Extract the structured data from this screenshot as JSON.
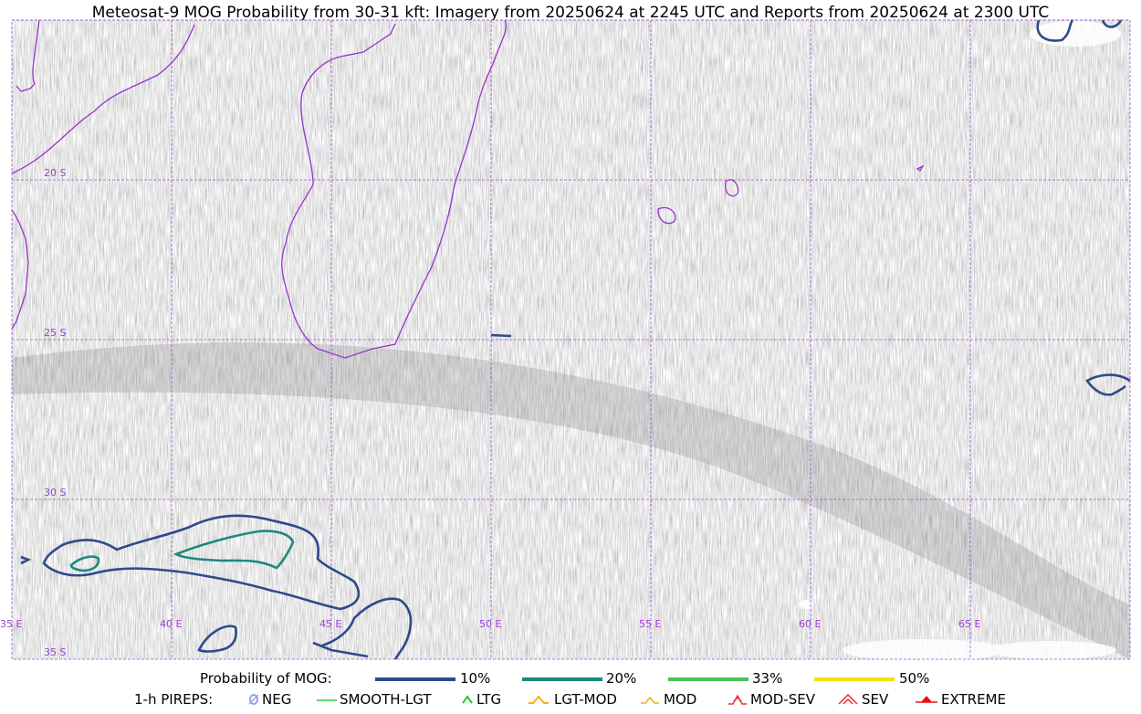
{
  "title": "Meteosat-9 MOG Probability from 30-31 kft: Imagery from 20250624 at 2245 UTC and Reports from 20250624 at 2300 UTC",
  "map": {
    "latitude_labels": [
      "20 S",
      "25 S",
      "30 S",
      "35 S"
    ],
    "longitude_labels": [
      "35 E",
      "40 E",
      "45 E",
      "50 E",
      "55 E",
      "60 E",
      "65 E"
    ],
    "colors": {
      "grid": "#a04fd8",
      "coastline": "#9932cc",
      "contour_10": "#2f4a8a",
      "contour_20": "#1a8a7e",
      "contour_33": "#46c45a",
      "contour_50": "#f5df10"
    }
  },
  "legend": {
    "probability_label": "Probability of MOG:",
    "levels": [
      {
        "label": "10%",
        "color": "#2f4a8a"
      },
      {
        "label": "20%",
        "color": "#1a8a7e"
      },
      {
        "label": "33%",
        "color": "#46c45a"
      },
      {
        "label": "50%",
        "color": "#f5df10"
      }
    ],
    "pireps_label": "1-h PIREPS:",
    "pireps": [
      {
        "label": "NEG",
        "icon": "neg-pirep-icon",
        "color": "#9aa0f0"
      },
      {
        "label": "SMOOTH-LGT",
        "icon": "smooth-lgt-pirep-icon",
        "color": "#33cc33"
      },
      {
        "label": "LTG",
        "icon": "ltg-pirep-icon",
        "color": "#22cc22"
      },
      {
        "label": "LGT-MOD",
        "icon": "lgt-mod-pirep-icon",
        "color": "#f0b020"
      },
      {
        "label": "MOD",
        "icon": "mod-pirep-icon",
        "color": "#f0b020"
      },
      {
        "label": "MOD-SEV",
        "icon": "mod-sev-pirep-icon",
        "color": "#e83030"
      },
      {
        "label": "SEV",
        "icon": "sev-pirep-icon",
        "color": "#e83030"
      },
      {
        "label": "EXTREME",
        "icon": "extreme-pirep-icon",
        "color": "#e81010"
      }
    ]
  }
}
